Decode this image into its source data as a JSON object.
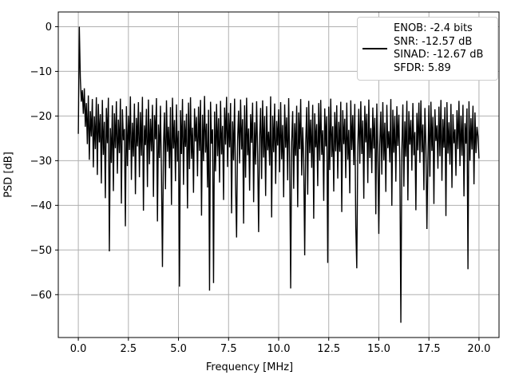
{
  "figure": {
    "background": "#ffffff",
    "grid_color": "#b0b0b0",
    "axis_color": "#000000",
    "text_color": "#000000"
  },
  "chart_data": {
    "type": "line",
    "title": "",
    "xlabel": "Frequency [MHz]",
    "ylabel": "PSD [dB]",
    "xlim": [
      -1.0,
      21.0
    ],
    "ylim": [
      -69.6,
      3.3
    ],
    "grid": true,
    "legend_position": "upper right",
    "legend_lines": [
      "ENOB: -2.4 bits",
      "SNR: -12.57 dB",
      "SINAD: -12.67 dB",
      "SFDR: 5.89"
    ],
    "line_color": "#000000",
    "x_ticks": [
      0.0,
      2.5,
      5.0,
      7.5,
      10.0,
      12.5,
      15.0,
      17.5,
      20.0
    ],
    "x_tick_labels": [
      "0.0",
      "2.5",
      "5.0",
      "7.5",
      "10.0",
      "12.5",
      "15.0",
      "17.5",
      "20.0"
    ],
    "y_ticks": [
      0,
      -10,
      -20,
      -30,
      -40,
      -50,
      -60
    ],
    "y_tick_labels": [
      "0",
      "−10",
      "−20",
      "−30",
      "−40",
      "−50",
      "−60"
    ],
    "series": [
      {
        "x_start": 0.0,
        "x_step": 0.05,
        "y": [
          -24.0,
          0.0,
          -11.5,
          -16.8,
          -14.2,
          -19.5,
          -13.8,
          -22.4,
          -17.1,
          -26.3,
          -15.4,
          -29.8,
          -18.9,
          -24.6,
          -16.2,
          -31.5,
          -20.1,
          -27.4,
          -15.8,
          -33.2,
          -17.3,
          -25.9,
          -19.6,
          -35.1,
          -16.4,
          -28.7,
          -21.3,
          -38.4,
          -18.2,
          -26.1,
          -15.9,
          -50.3,
          -22.7,
          -30.5,
          -17.6,
          -36.8,
          -19.4,
          -27.2,
          -16.7,
          -32.9,
          -20.8,
          -28.3,
          -16.1,
          -39.6,
          -18.5,
          -25.4,
          -22.9,
          -44.7,
          -17.8,
          -31.2,
          -19.9,
          -27.6,
          -15.6,
          -34.3,
          -21.5,
          -29.1,
          -17.2,
          -37.5,
          -20.4,
          -26.8,
          -16.9,
          -33.7,
          -19.1,
          -28.9,
          -15.7,
          -41.2,
          -22.1,
          -26.5,
          -18.4,
          -35.9,
          -16.3,
          -30.8,
          -20.6,
          -27.9,
          -17.5,
          -38.1,
          -19.8,
          -25.2,
          -16.0,
          -43.6,
          -21.9,
          -29.4,
          -17.7,
          -33.0,
          -53.8,
          -26.7,
          -19.2,
          -36.4,
          -16.5,
          -28.0,
          -22.4,
          -31.7,
          -18.0,
          -39.9,
          -15.9,
          -27.3,
          -20.9,
          -34.6,
          -17.4,
          -30.2,
          -23.3,
          -58.2,
          -18.7,
          -28.5,
          -16.2,
          -35.4,
          -21.0,
          -26.9,
          -19.5,
          -40.7,
          -17.0,
          -31.9,
          -15.8,
          -29.6,
          -22.6,
          -37.2,
          -18.3,
          -25.7,
          -20.2,
          -33.5,
          -17.9,
          -27.8,
          -16.4,
          -42.3,
          -19.7,
          -30.1,
          -15.5,
          -28.2,
          -21.7,
          -36.0,
          -18.6,
          -59.1,
          -16.8,
          -26.2,
          -23.0,
          -57.4,
          -19.0,
          -32.4,
          -17.3,
          -29.0,
          -20.5,
          -34.9,
          -16.6,
          -28.6,
          -22.2,
          -38.8,
          -18.1,
          -26.4,
          -15.7,
          -31.4,
          -19.3,
          -27.0,
          -17.1,
          -41.8,
          -21.2,
          -29.9,
          -16.1,
          -35.6,
          -47.2,
          -25.5,
          -18.8,
          -30.6,
          -16.3,
          -27.5,
          -20.7,
          -44.1,
          -17.6,
          -33.8,
          -15.9,
          -28.8,
          -22.8,
          -36.7,
          -19.6,
          -26.0,
          -17.0,
          -39.3,
          -21.4,
          -30.9,
          -16.7,
          -28.4,
          -46.0,
          -24.9,
          -18.2,
          -34.1,
          -16.5,
          -29.3,
          -20.0,
          -37.9,
          -17.8,
          -27.7,
          -23.5,
          -31.1,
          -15.6,
          -42.7,
          -19.9,
          -28.1,
          -17.2,
          -35.2,
          -21.1,
          -26.6,
          -18.5,
          -32.6,
          -16.9,
          -29.7,
          -22.0,
          -38.2,
          -17.4,
          -27.1,
          -20.3,
          -34.4,
          -16.0,
          -30.3,
          -58.6,
          -25.8,
          -18.9,
          -36.3,
          -21.6,
          -28.9,
          -17.7,
          -40.4,
          -19.2,
          -27.4,
          -16.2,
          -33.3,
          -22.5,
          -29.5,
          -51.2,
          -26.1,
          -18.0,
          -37.6,
          -16.6,
          -28.3,
          -20.8,
          -31.6,
          -17.5,
          -43.0,
          -19.4,
          -27.0,
          -21.8,
          -35.7,
          -17.1,
          -30.0,
          -16.4,
          -28.7,
          -23.2,
          -39.0,
          -18.3,
          -26.8,
          -20.1,
          -52.9,
          -17.9,
          -32.1,
          -16.1,
          -29.2,
          -22.3,
          -36.9,
          -19.1,
          -27.9,
          -17.6,
          -34.0,
          -21.3,
          -28.0,
          -16.8,
          -41.5,
          -18.7,
          -26.3,
          -20.6,
          -33.9,
          -17.0,
          -29.8,
          -23.1,
          -37.3,
          -16.5,
          -27.6,
          -19.8,
          -31.0,
          -17.3,
          -44.9,
          -54.1,
          -26.9,
          -18.4,
          -30.7,
          -16.7,
          -28.5,
          -21.0,
          -38.5,
          -17.7,
          -25.9,
          -19.5,
          -35.0,
          -16.3,
          -29.4,
          -22.7,
          -32.8,
          -18.1,
          -27.3,
          -20.4,
          -42.0,
          -17.2,
          -28.6,
          -46.4,
          -26.5,
          -19.0,
          -33.1,
          -16.9,
          -29.9,
          -21.5,
          -37.0,
          -17.5,
          -27.2,
          -23.4,
          -30.4,
          -16.2,
          -40.1,
          -18.6,
          -28.2,
          -20.0,
          -34.7,
          -17.8,
          -26.7,
          -19.7,
          -31.3,
          -66.3,
          -27.5,
          -17.4,
          -35.8,
          -21.2,
          -29.1,
          -16.6,
          -38.9,
          -18.9,
          -26.4,
          -20.9,
          -32.2,
          -17.1,
          -28.8,
          -23.6,
          -41.1,
          -19.3,
          -27.7,
          -17.0,
          -30.5,
          -16.5,
          -28.1,
          -21.9,
          -36.6,
          -18.2,
          -26.6,
          -45.3,
          -29.6,
          -17.6,
          -33.6,
          -16.8,
          -27.8,
          -20.2,
          -39.7,
          -18.5,
          -25.6,
          -22.1,
          -31.8,
          -17.9,
          -29.0,
          -16.4,
          -34.5,
          -20.7,
          -27.1,
          -18.0,
          -42.4,
          -16.9,
          -28.4,
          -21.4,
          -30.9,
          -17.3,
          -36.1,
          -19.6,
          -26.1,
          -23.0,
          -33.4,
          -18.7,
          -27.4,
          -16.6,
          -31.2,
          -19.9,
          -28.9,
          -17.5,
          -38.0,
          -21.6,
          -26.2,
          -18.3,
          -54.3,
          -16.7,
          -30.0,
          -20.5,
          -27.5,
          -17.7,
          -35.3,
          -19.2,
          -28.3,
          -22.4,
          -24.5,
          -29.5
        ]
      }
    ]
  }
}
